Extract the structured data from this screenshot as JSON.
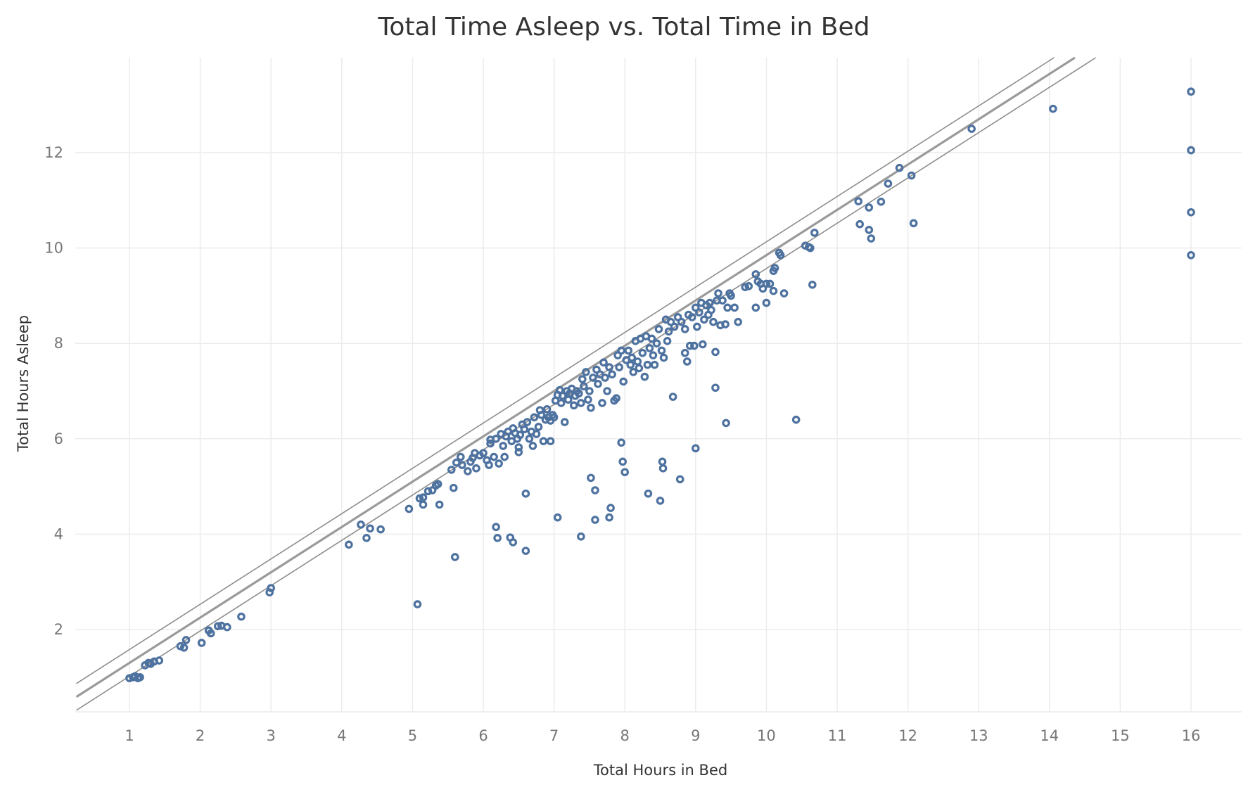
{
  "chart_data": {
    "type": "scatter",
    "title": "Total Time Asleep vs. Total Time in Bed",
    "xlabel": "Total Hours in Bed",
    "ylabel": "Total Hours Asleep",
    "xlim": [
      0.25,
      16.5
    ],
    "ylim": [
      0.3,
      14
    ],
    "xticks": [
      1,
      2,
      3,
      4,
      5,
      6,
      7,
      8,
      9,
      10,
      11,
      12,
      13,
      14,
      15,
      16
    ],
    "yticks": [
      2,
      4,
      6,
      8,
      10,
      12
    ],
    "grid": true,
    "colors": {
      "points": "#4e72a0",
      "trend": "#9a9a9a",
      "band": "#8c8c8c",
      "grid": "#ececec"
    },
    "trend_line": {
      "slope": 0.95,
      "intercept": 0.35,
      "band_halfwidth": 0.28
    },
    "points": [
      [
        1.0,
        0.98
      ],
      [
        1.05,
        1.0
      ],
      [
        1.08,
        1.02
      ],
      [
        1.12,
        0.98
      ],
      [
        1.15,
        1.0
      ],
      [
        1.22,
        1.25
      ],
      [
        1.27,
        1.3
      ],
      [
        1.3,
        1.28
      ],
      [
        1.35,
        1.33
      ],
      [
        1.42,
        1.35
      ],
      [
        1.72,
        1.65
      ],
      [
        1.77,
        1.62
      ],
      [
        1.8,
        1.78
      ],
      [
        2.02,
        1.72
      ],
      [
        2.12,
        1.98
      ],
      [
        2.15,
        1.92
      ],
      [
        2.25,
        2.07
      ],
      [
        2.3,
        2.08
      ],
      [
        2.38,
        2.05
      ],
      [
        2.58,
        2.27
      ],
      [
        2.98,
        2.78
      ],
      [
        3.0,
        2.87
      ],
      [
        4.1,
        3.78
      ],
      [
        4.27,
        4.2
      ],
      [
        4.35,
        3.92
      ],
      [
        4.4,
        4.12
      ],
      [
        4.55,
        4.1
      ],
      [
        4.95,
        4.53
      ],
      [
        5.07,
        2.53
      ],
      [
        5.1,
        4.75
      ],
      [
        5.15,
        4.77
      ],
      [
        5.15,
        4.62
      ],
      [
        5.22,
        4.9
      ],
      [
        5.28,
        4.92
      ],
      [
        5.33,
        5.02
      ],
      [
        5.36,
        5.05
      ],
      [
        5.38,
        4.62
      ],
      [
        5.55,
        5.35
      ],
      [
        5.58,
        4.97
      ],
      [
        5.6,
        3.52
      ],
      [
        5.62,
        5.5
      ],
      [
        5.68,
        5.62
      ],
      [
        5.7,
        5.45
      ],
      [
        5.78,
        5.32
      ],
      [
        5.82,
        5.52
      ],
      [
        5.85,
        5.6
      ],
      [
        5.88,
        5.7
      ],
      [
        5.9,
        5.38
      ],
      [
        5.95,
        5.65
      ],
      [
        6.0,
        5.7
      ],
      [
        6.05,
        5.55
      ],
      [
        6.08,
        5.45
      ],
      [
        6.1,
        5.9
      ],
      [
        6.1,
        5.98
      ],
      [
        6.15,
        5.62
      ],
      [
        6.18,
        6.0
      ],
      [
        6.18,
        4.15
      ],
      [
        6.2,
        3.92
      ],
      [
        6.22,
        5.48
      ],
      [
        6.25,
        6.1
      ],
      [
        6.28,
        5.85
      ],
      [
        6.3,
        5.62
      ],
      [
        6.32,
        6.05
      ],
      [
        6.35,
        6.15
      ],
      [
        6.38,
        3.93
      ],
      [
        6.4,
        5.95
      ],
      [
        6.42,
        3.83
      ],
      [
        6.42,
        6.22
      ],
      [
        6.45,
        6.12
      ],
      [
        6.48,
        6.0
      ],
      [
        6.5,
        5.72
      ],
      [
        6.5,
        5.82
      ],
      [
        6.52,
        6.08
      ],
      [
        6.55,
        6.3
      ],
      [
        6.58,
        6.2
      ],
      [
        6.6,
        3.65
      ],
      [
        6.6,
        4.85
      ],
      [
        6.62,
        6.35
      ],
      [
        6.65,
        6.0
      ],
      [
        6.68,
        6.15
      ],
      [
        6.7,
        5.85
      ],
      [
        6.72,
        6.45
      ],
      [
        6.75,
        6.1
      ],
      [
        6.78,
        6.25
      ],
      [
        6.8,
        6.6
      ],
      [
        6.82,
        6.5
      ],
      [
        6.85,
        5.95
      ],
      [
        6.88,
        6.4
      ],
      [
        6.9,
        6.62
      ],
      [
        6.92,
        6.45
      ],
      [
        6.95,
        6.38
      ],
      [
        6.95,
        5.95
      ],
      [
        6.98,
        6.5
      ],
      [
        7.0,
        6.45
      ],
      [
        7.02,
        6.8
      ],
      [
        7.05,
        6.92
      ],
      [
        7.05,
        4.35
      ],
      [
        7.08,
        7.02
      ],
      [
        7.1,
        6.75
      ],
      [
        7.12,
        6.9
      ],
      [
        7.15,
        6.35
      ],
      [
        7.18,
        7.0
      ],
      [
        7.2,
        6.82
      ],
      [
        7.22,
        6.95
      ],
      [
        7.25,
        7.05
      ],
      [
        7.28,
        6.7
      ],
      [
        7.3,
        6.9
      ],
      [
        7.32,
        7.0
      ],
      [
        7.35,
        6.95
      ],
      [
        7.38,
        3.95
      ],
      [
        7.38,
        6.75
      ],
      [
        7.4,
        7.25
      ],
      [
        7.42,
        7.1
      ],
      [
        7.45,
        7.4
      ],
      [
        7.48,
        6.82
      ],
      [
        7.5,
        7.0
      ],
      [
        7.52,
        6.65
      ],
      [
        7.52,
        5.18
      ],
      [
        7.55,
        7.28
      ],
      [
        7.58,
        4.92
      ],
      [
        7.58,
        4.3
      ],
      [
        7.6,
        7.45
      ],
      [
        7.62,
        7.15
      ],
      [
        7.65,
        7.35
      ],
      [
        7.68,
        6.75
      ],
      [
        7.7,
        7.6
      ],
      [
        7.72,
        7.28
      ],
      [
        7.75,
        7.0
      ],
      [
        7.78,
        7.5
      ],
      [
        7.78,
        4.35
      ],
      [
        7.8,
        4.55
      ],
      [
        7.82,
        7.35
      ],
      [
        7.85,
        6.8
      ],
      [
        7.88,
        6.85
      ],
      [
        7.9,
        7.75
      ],
      [
        7.92,
        7.5
      ],
      [
        7.95,
        5.92
      ],
      [
        7.95,
        7.85
      ],
      [
        7.97,
        5.52
      ],
      [
        7.98,
        7.2
      ],
      [
        8.0,
        5.3
      ],
      [
        8.02,
        7.65
      ],
      [
        8.05,
        7.85
      ],
      [
        8.08,
        7.55
      ],
      [
        8.1,
        7.7
      ],
      [
        8.12,
        7.4
      ],
      [
        8.15,
        8.05
      ],
      [
        8.18,
        7.62
      ],
      [
        8.2,
        7.48
      ],
      [
        8.22,
        8.1
      ],
      [
        8.25,
        7.8
      ],
      [
        8.28,
        7.3
      ],
      [
        8.3,
        8.15
      ],
      [
        8.32,
        7.55
      ],
      [
        8.33,
        4.85
      ],
      [
        8.35,
        7.9
      ],
      [
        8.38,
        8.1
      ],
      [
        8.4,
        7.75
      ],
      [
        8.42,
        7.55
      ],
      [
        8.45,
        8.0
      ],
      [
        8.48,
        8.3
      ],
      [
        8.5,
        4.7
      ],
      [
        8.52,
        7.85
      ],
      [
        8.53,
        5.52
      ],
      [
        8.54,
        5.38
      ],
      [
        8.55,
        7.7
      ],
      [
        8.58,
        8.5
      ],
      [
        8.6,
        8.05
      ],
      [
        8.62,
        8.25
      ],
      [
        8.65,
        8.45
      ],
      [
        8.68,
        6.88
      ],
      [
        8.7,
        8.35
      ],
      [
        8.75,
        8.55
      ],
      [
        8.78,
        5.15
      ],
      [
        8.8,
        8.45
      ],
      [
        8.85,
        8.3
      ],
      [
        8.85,
        7.8
      ],
      [
        8.88,
        7.62
      ],
      [
        8.9,
        8.6
      ],
      [
        8.92,
        7.95
      ],
      [
        8.95,
        8.55
      ],
      [
        8.98,
        7.95
      ],
      [
        9.0,
        5.8
      ],
      [
        9.0,
        8.75
      ],
      [
        9.02,
        8.35
      ],
      [
        9.05,
        8.65
      ],
      [
        9.08,
        8.85
      ],
      [
        9.1,
        7.98
      ],
      [
        9.12,
        8.5
      ],
      [
        9.15,
        8.8
      ],
      [
        9.18,
        8.6
      ],
      [
        9.2,
        8.85
      ],
      [
        9.22,
        8.7
      ],
      [
        9.25,
        8.45
      ],
      [
        9.28,
        7.82
      ],
      [
        9.28,
        7.07
      ],
      [
        9.3,
        8.9
      ],
      [
        9.32,
        9.05
      ],
      [
        9.35,
        8.38
      ],
      [
        9.38,
        8.9
      ],
      [
        9.42,
        8.4
      ],
      [
        9.43,
        6.33
      ],
      [
        9.45,
        8.75
      ],
      [
        9.48,
        9.05
      ],
      [
        9.5,
        9.0
      ],
      [
        9.55,
        8.75
      ],
      [
        9.6,
        8.45
      ],
      [
        9.7,
        9.18
      ],
      [
        9.75,
        9.2
      ],
      [
        9.85,
        9.45
      ],
      [
        9.85,
        8.75
      ],
      [
        9.88,
        9.3
      ],
      [
        9.92,
        9.25
      ],
      [
        9.95,
        9.15
      ],
      [
        10.0,
        9.25
      ],
      [
        10.0,
        8.85
      ],
      [
        10.05,
        9.25
      ],
      [
        10.1,
        9.1
      ],
      [
        10.1,
        9.52
      ],
      [
        10.12,
        9.58
      ],
      [
        10.18,
        9.9
      ],
      [
        10.2,
        9.85
      ],
      [
        10.25,
        9.05
      ],
      [
        10.42,
        6.4
      ],
      [
        10.55,
        10.05
      ],
      [
        10.6,
        10.02
      ],
      [
        10.62,
        10.0
      ],
      [
        10.65,
        9.23
      ],
      [
        10.68,
        10.32
      ],
      [
        11.3,
        10.98
      ],
      [
        11.32,
        10.5
      ],
      [
        11.45,
        10.85
      ],
      [
        11.45,
        10.38
      ],
      [
        11.48,
        10.2
      ],
      [
        11.62,
        10.97
      ],
      [
        11.72,
        11.35
      ],
      [
        11.88,
        11.68
      ],
      [
        12.05,
        11.52
      ],
      [
        12.08,
        10.52
      ],
      [
        12.9,
        12.5
      ],
      [
        14.05,
        12.92
      ],
      [
        16.0,
        13.28
      ],
      [
        16.0,
        12.05
      ],
      [
        16.0,
        10.75
      ],
      [
        16.0,
        9.85
      ]
    ]
  }
}
